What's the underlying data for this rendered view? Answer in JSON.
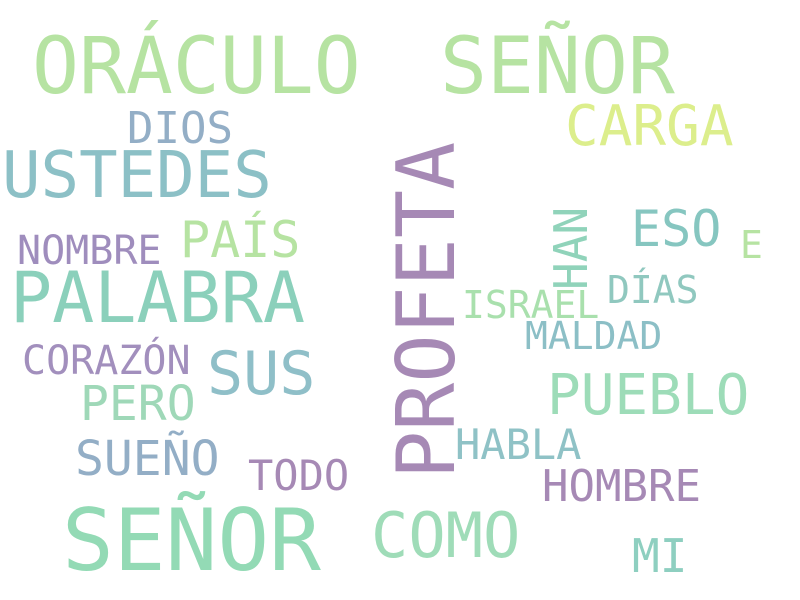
{
  "words": [
    {
      "text": "ORÁCULO",
      "color": "#b6e3a2"
    },
    {
      "text": "SEÑOR",
      "color": "#b6e3a2"
    },
    {
      "text": "CARGA",
      "color": "#dcee8c"
    },
    {
      "text": "DIOS",
      "color": "#93aec6"
    },
    {
      "text": "USTEDES",
      "color": "#8cc0c6"
    },
    {
      "text": "PROFETA",
      "color": "#a689b5"
    },
    {
      "text": "HAN",
      "color": "#90d3ba"
    },
    {
      "text": "ESO",
      "color": "#86c6c0"
    },
    {
      "text": "E",
      "color": "#b6e3a2"
    },
    {
      "text": "NOMBRE",
      "color": "#9f8dbd"
    },
    {
      "text": "PAÍS",
      "color": "#b6e3a2"
    },
    {
      "text": "PALABRA",
      "color": "#8bd0bb"
    },
    {
      "text": "DÍAS",
      "color": "#90c8bf"
    },
    {
      "text": "ISRAEL",
      "color": "#a9e0ad"
    },
    {
      "text": "MALDAD",
      "color": "#8cbfc6"
    },
    {
      "text": "CORAZÓN",
      "color": "#a28fbd"
    },
    {
      "text": "SUS",
      "color": "#8fbfc8"
    },
    {
      "text": "PUEBLO",
      "color": "#9ddcb8"
    },
    {
      "text": "PERO",
      "color": "#9fd8b8"
    },
    {
      "text": "HABLA",
      "color": "#8fc2c6"
    },
    {
      "text": "SUEÑO",
      "color": "#93aec6"
    },
    {
      "text": "TODO",
      "color": "#a689b5"
    },
    {
      "text": "HOMBRE",
      "color": "#a689b5"
    },
    {
      "text": "SEÑOR",
      "color": "#93dab5"
    },
    {
      "text": "COMO",
      "color": "#9fdcb8"
    },
    {
      "text": "MI",
      "color": "#8ecfc0"
    }
  ]
}
